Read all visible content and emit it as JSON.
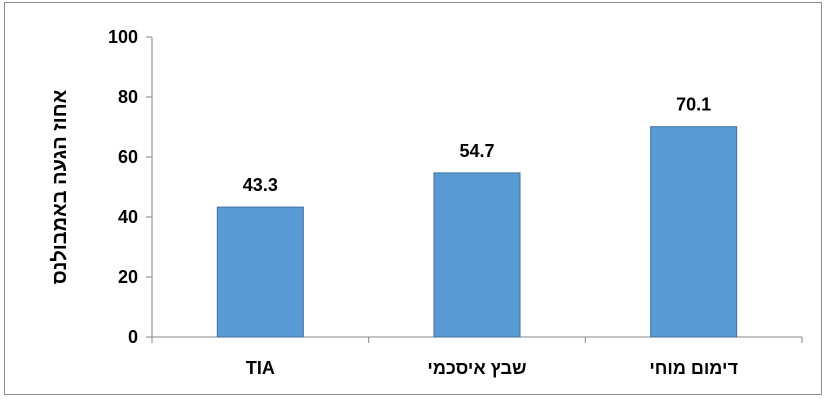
{
  "chart_data": {
    "type": "bar",
    "categories": [
      "TIA",
      "שבץ איסכמי",
      "דימום מוחי"
    ],
    "values": [
      43.3,
      54.7,
      70.1
    ],
    "data_labels": [
      "43.3",
      "54.7",
      "70.1"
    ],
    "title": "",
    "xlabel": "",
    "ylabel": "אחוז הגעה באמבולנס",
    "ylim": [
      0,
      100
    ],
    "yticks": [
      0,
      20,
      40,
      60,
      80,
      100
    ],
    "grid": false,
    "legend": "none",
    "bar_color": "#5b9bd5",
    "bar_edge_color": "#41719c"
  }
}
